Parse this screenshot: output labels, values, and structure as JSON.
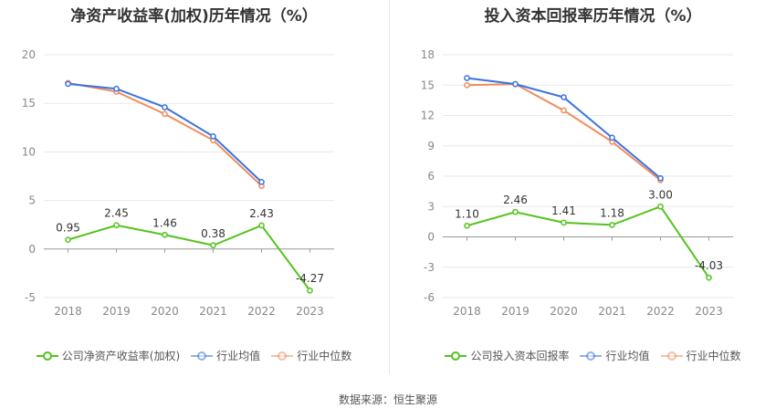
{
  "source_label": "数据来源：恒生聚源",
  "chart_data": [
    {
      "type": "line",
      "title": "净资产收益率(加权)历年情况（%）",
      "categories": [
        "2018",
        "2019",
        "2020",
        "2021",
        "2022",
        "2023"
      ],
      "ylim": [
        -5,
        20
      ],
      "yticks": [
        -5,
        0,
        5,
        10,
        15,
        20
      ],
      "grid": true,
      "legend_position": "bottom",
      "series": [
        {
          "name": "公司净资产收益率(加权)",
          "color": "#52c41a",
          "values": [
            0.95,
            2.45,
            1.46,
            0.38,
            2.43,
            -4.27
          ],
          "value_labels": [
            "0.95",
            "2.45",
            "1.46",
            "0.38",
            "2.43",
            "-4.27"
          ]
        },
        {
          "name": "行业均值",
          "color": "#3a73e0",
          "values": [
            17.0,
            16.5,
            14.6,
            11.6,
            6.9,
            null
          ],
          "value_labels": []
        },
        {
          "name": "行业中位数",
          "color": "#f08c5a",
          "values": [
            17.1,
            16.2,
            13.9,
            11.2,
            6.5,
            null
          ],
          "value_labels": []
        }
      ]
    },
    {
      "type": "line",
      "title": "投入资本回报率历年情况（%）",
      "categories": [
        "2018",
        "2019",
        "2020",
        "2021",
        "2022",
        "2023"
      ],
      "ylim": [
        -6,
        18
      ],
      "yticks": [
        -6,
        -3,
        0,
        3,
        6,
        9,
        12,
        15,
        18
      ],
      "grid": true,
      "legend_position": "bottom",
      "series": [
        {
          "name": "公司投入资本回报率",
          "color": "#52c41a",
          "values": [
            1.1,
            2.46,
            1.41,
            1.18,
            3.0,
            -4.03
          ],
          "value_labels": [
            "1.10",
            "2.46",
            "1.41",
            "1.18",
            "3.00",
            "-4.03"
          ]
        },
        {
          "name": "行业均值",
          "color": "#3a73e0",
          "values": [
            15.7,
            15.1,
            13.8,
            9.8,
            5.8,
            null
          ],
          "value_labels": []
        },
        {
          "name": "行业中位数",
          "color": "#f08c5a",
          "values": [
            15.0,
            15.1,
            12.5,
            9.4,
            5.6,
            null
          ],
          "value_labels": []
        }
      ]
    }
  ]
}
